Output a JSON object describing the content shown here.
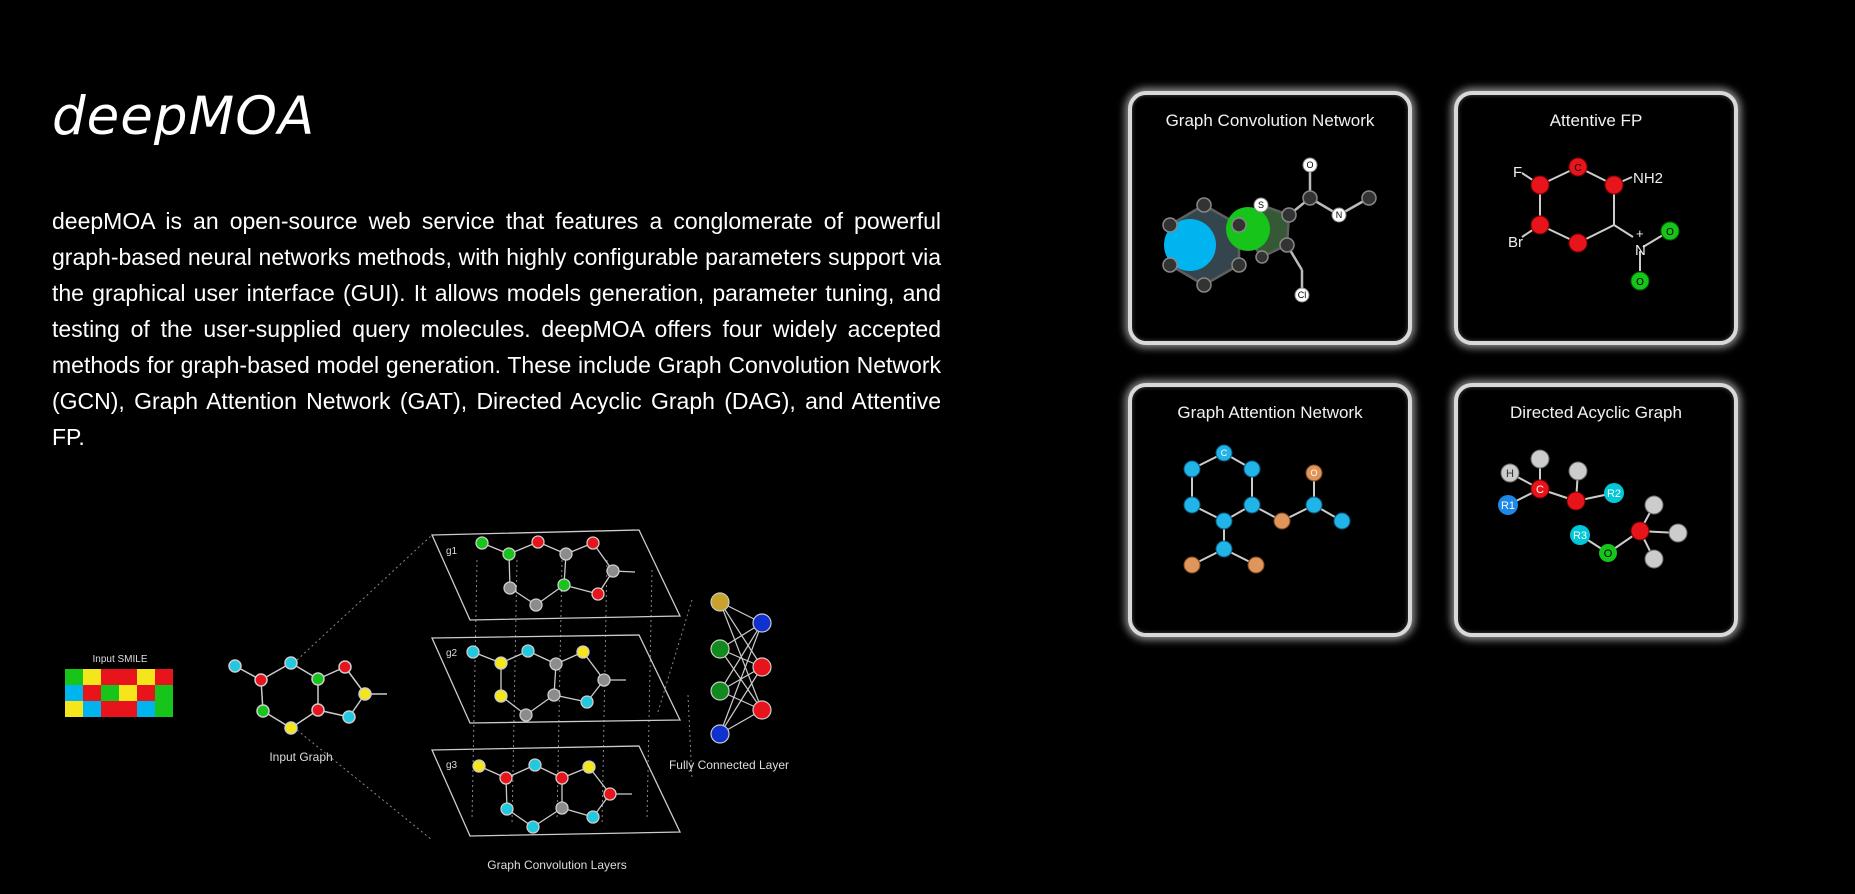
{
  "page": {
    "title": "deepMOA",
    "description": "deepMOA is an open-source web service that features a conglomerate of powerful graph-based neural networks methods, with highly configurable parameters support via the graphical user interface (GUI). It allows models generation, parameter tuning, and testing of the user-supplied query molecules. deepMOA offers four widely accepted methods for graph-based model generation. These include Graph Convolution Network (GCN), Graph Attention Network (GAT), Directed Acyclic Graph (DAG), and Attentive FP."
  },
  "diagram": {
    "input_smile_label": "Input SMILE",
    "input_graph_label": "Input Graph",
    "layers_label": "Graph Convolution Layers",
    "fc_label": "Fully Connected Layer",
    "layer_names": [
      "g1",
      "g2",
      "g3"
    ]
  },
  "methods": [
    {
      "title": "Graph Convolution Network",
      "atoms": [
        "S",
        "O",
        "N",
        "Cl"
      ]
    },
    {
      "title": "Attentive FP",
      "atoms": [
        "F",
        "Br",
        "NH2",
        "N",
        "+",
        "O",
        "O",
        "C"
      ]
    },
    {
      "title": "Graph Attention Network",
      "atoms": [
        "C",
        "O"
      ]
    },
    {
      "title": "Directed Acyclic Graph",
      "atoms": [
        "H",
        "C",
        "R1",
        "R2",
        "R3",
        "O"
      ]
    }
  ],
  "colors": {
    "background": "#000000",
    "red": "#e8141c",
    "green": "#17c41a",
    "blue": "#00b4f0",
    "yellow": "#f5e61c",
    "gray": "#8c8c8c",
    "orange": "#e08a4a",
    "cyan": "#20c8e0"
  }
}
